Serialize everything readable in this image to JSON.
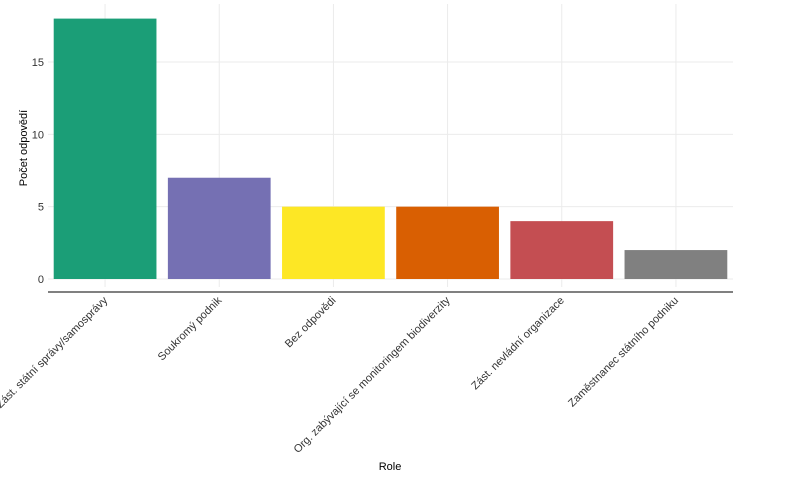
{
  "chart_data": {
    "type": "bar",
    "categories": [
      "Zást. státní správy/samosprávy",
      "Soukromý podnik",
      "Bez odpovědi",
      "Org. zabývající se monitoringem biodiverzity",
      "Zást. nevládní organizace",
      "Zaměstnanec státního podniku"
    ],
    "values": [
      18,
      7,
      5,
      5,
      4,
      2
    ],
    "colors": [
      "#1b9e77",
      "#7570b3",
      "#fde725",
      "#d95f02",
      "#c44e52",
      "#808080"
    ],
    "xlabel": "Role",
    "ylabel": "Počet odpovědí",
    "ylim": [
      0,
      18.9
    ],
    "yticks": [
      0,
      5,
      10,
      15
    ],
    "grid": true
  }
}
